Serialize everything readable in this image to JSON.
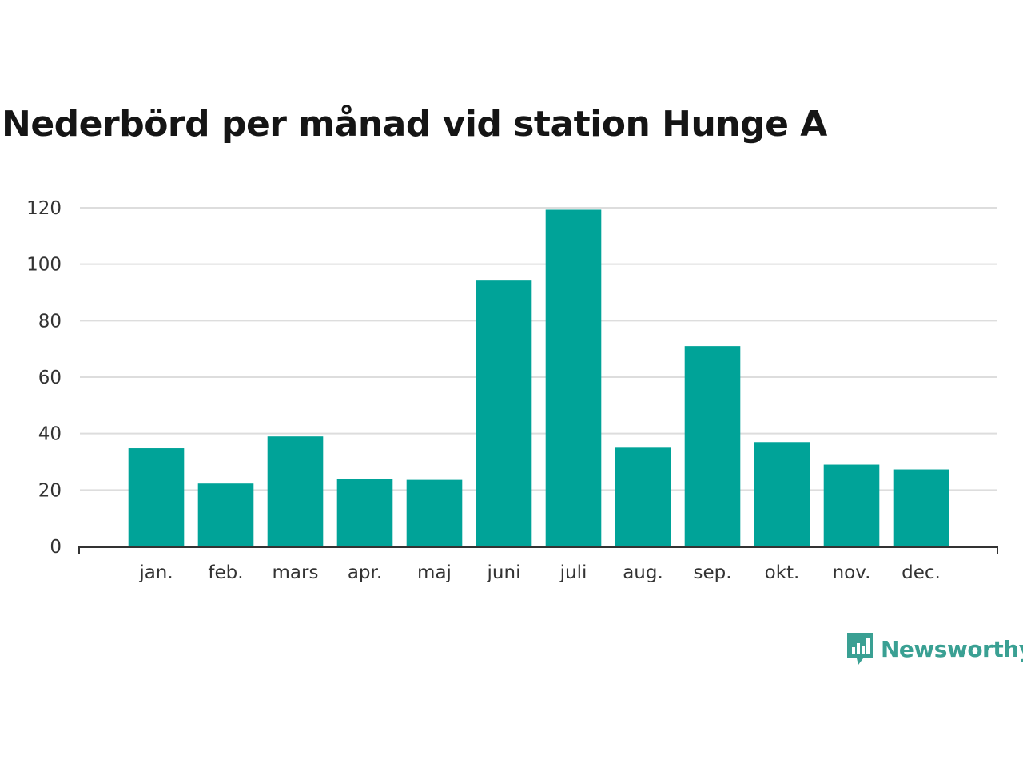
{
  "colors": {
    "bar": "#00a398",
    "grid": "#dddddd",
    "axis": "#333333",
    "brand": "#3aa093"
  },
  "brand": {
    "name": "Newsworthy",
    "icon": "bar-chart-speech-bubble-icon"
  },
  "chart_data": {
    "type": "bar",
    "title": "Nederbörd per månad vid station Hunge A",
    "xlabel": "",
    "ylabel": "",
    "categories": [
      "jan.",
      "feb.",
      "mars",
      "apr.",
      "maj",
      "juni",
      "juli",
      "aug.",
      "sep.",
      "okt.",
      "nov.",
      "dec."
    ],
    "values": [
      34.8,
      22.3,
      39.0,
      23.8,
      23.6,
      94.2,
      119.3,
      35.0,
      71.0,
      37.0,
      29.0,
      27.3
    ],
    "ylim": [
      0,
      120
    ],
    "yticks": [
      "0",
      "20",
      "40",
      "60",
      "80",
      "100",
      "120"
    ],
    "grid": true,
    "legend": "none"
  }
}
